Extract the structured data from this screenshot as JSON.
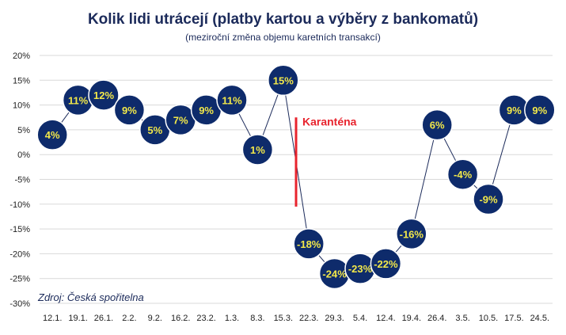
{
  "chart_data": {
    "type": "line",
    "title": "Kolik lidi utrácejí (platby kartou a výběry z bankomatů)",
    "subtitle": "(meziroční změna objemu karetních transakcí)",
    "categories": [
      "12.1.",
      "19.1.",
      "26.1.",
      "2.2.",
      "9.2.",
      "16.2.",
      "23.2.",
      "1.3.",
      "8.3.",
      "15.3.",
      "22.3.",
      "29.3.",
      "5.4.",
      "12.4.",
      "19.4.",
      "26.4.",
      "3.5.",
      "10.5.",
      "17.5.",
      "24.5."
    ],
    "values": [
      4,
      11,
      12,
      9,
      5,
      7,
      9,
      11,
      1,
      15,
      -18,
      -24,
      -23,
      -22,
      -16,
      6,
      -4,
      -9,
      9,
      9
    ],
    "labels": [
      "4%",
      "11%",
      "12%",
      "9%",
      "5%",
      "7%",
      "9%",
      "11%",
      "1%",
      "15%",
      "-18%",
      "-24%",
      "-23%",
      "-22%",
      "-16%",
      "6%",
      "-4%",
      "-9%",
      "9%",
      "9%"
    ],
    "y_ticks": [
      20,
      15,
      10,
      5,
      0,
      -5,
      -10,
      -15,
      -20,
      -25,
      -30
    ],
    "y_tick_labels": [
      "20%",
      "15%",
      "10%",
      "5%",
      "0%",
      "-5%",
      "-10%",
      "-15%",
      "-20%",
      "-25%",
      "-30%"
    ],
    "ylim": [
      -30,
      20
    ],
    "grid": "horizontal",
    "annotation": {
      "label": "Karanténa",
      "between": [
        "15.3.",
        "22.3."
      ],
      "y_range": [
        7.5,
        -10.5
      ]
    },
    "source": "Zdroj: Česká spořitelna"
  },
  "colors": {
    "bubble": "#0e2b6b",
    "label": "#f2e84a",
    "line": "#1b2a5a",
    "annotation": "#e8242e",
    "grid": "#d9d9d9"
  }
}
